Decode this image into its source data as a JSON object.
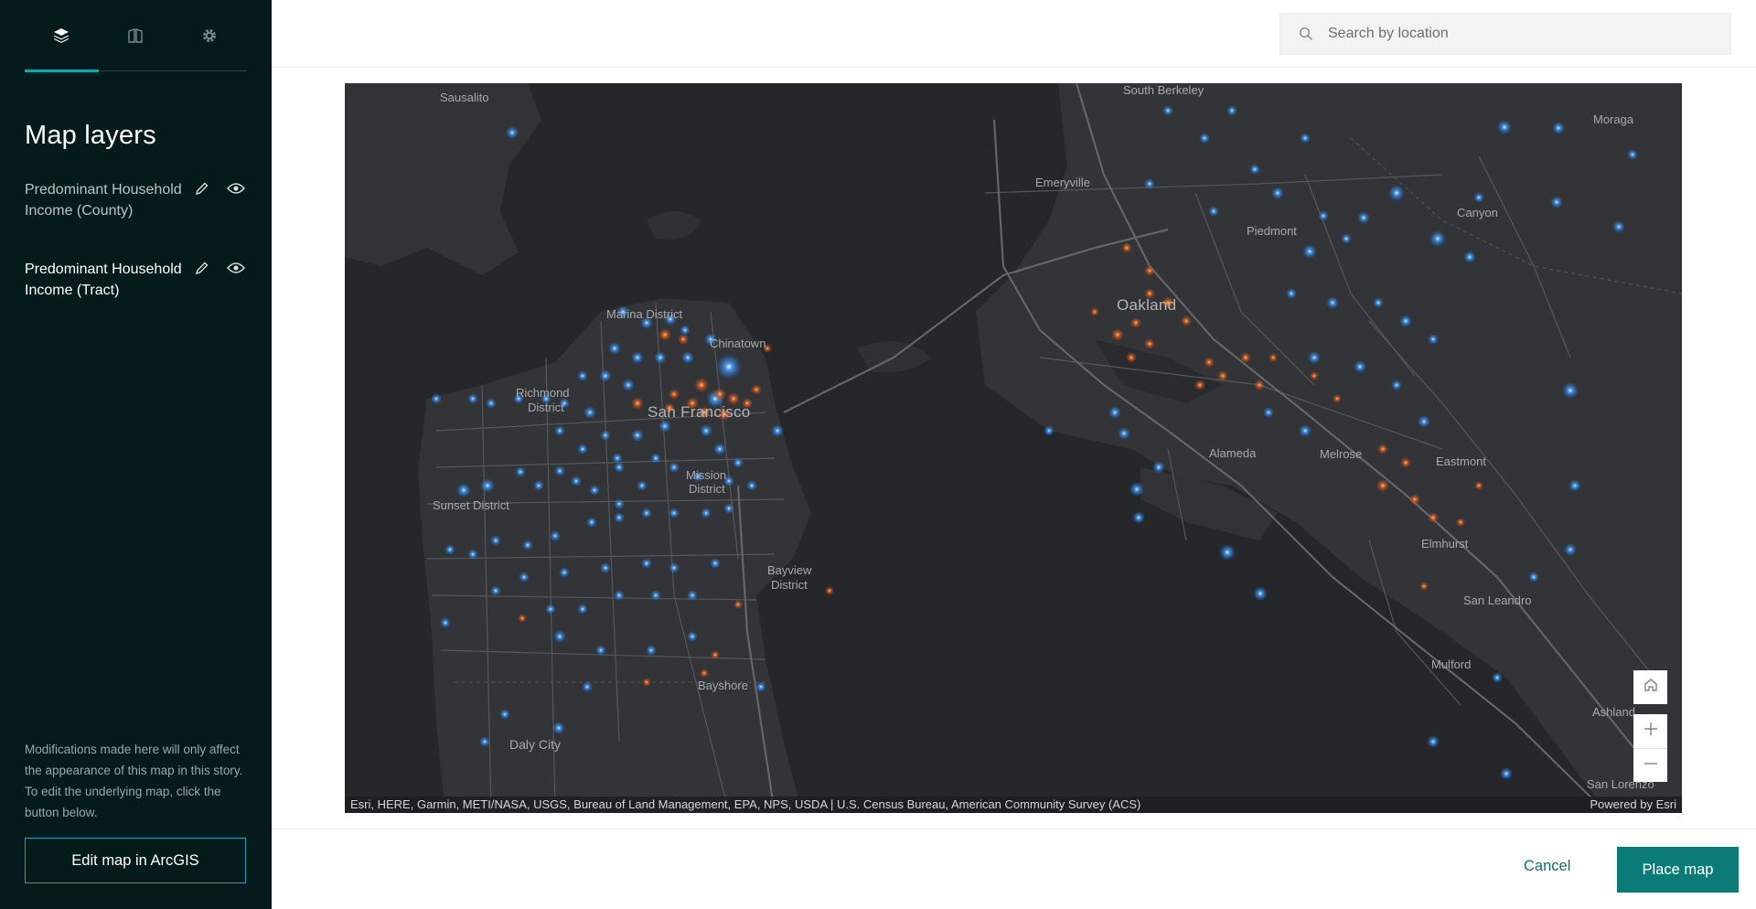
{
  "sidebar": {
    "tabs": [
      {
        "icon": "layers-icon"
      },
      {
        "icon": "legend-icon"
      },
      {
        "icon": "gear-icon"
      }
    ],
    "title": "Map layers",
    "layers": [
      {
        "name": "Predominant Household Income (County)",
        "selected": false
      },
      {
        "name": "Predominant Household Income (Tract)",
        "selected": true
      }
    ],
    "note": "Modifications made here will only affect the appearance of this map in this story. To edit the underlying map, click the button below.",
    "edit_button": "Edit map in ArcGIS"
  },
  "search": {
    "placeholder": "Search by location"
  },
  "map": {
    "labels": {
      "sausalito": "Sausalito",
      "south_berkeley": "South Berkeley",
      "moraga": "Moraga",
      "emeryville": "Emeryville",
      "canyon": "Canyon",
      "piedmont": "Piedmont",
      "oakland": "Oakland",
      "marina": "Marina District",
      "chinatown": "Chinatown",
      "richmond": "Richmond",
      "richmond2": "District",
      "san_francisco": "San Francisco",
      "alameda": "Alameda",
      "melrose": "Melrose",
      "eastmont": "Eastmont",
      "mission": "Mission",
      "mission2": "District",
      "sunset": "Sunset District",
      "elmhurst": "Elmhurst",
      "bayview": "Bayview",
      "bayview2": "District",
      "san_leandro": "San Leandro",
      "mulford": "Mulford",
      "bayshore": "Bayshore",
      "ashland": "Ashland",
      "daly_city": "Daly City",
      "san_lorenzo": "San Lorenzo"
    },
    "attribution": "Esri, HERE, Garmin, METI/NASA, USGS, Bureau of Land Management, EPA, NPS, USDA | U.S. Census Bureau, American Community Survey (ACS)",
    "powered_by": "Powered by Esri",
    "controls": [
      "home-icon",
      "zoom-in-icon",
      "zoom-out-icon"
    ],
    "colors": {
      "high_income": "#2f8fe8",
      "low_income": "#e0621e",
      "water": "#26272b",
      "land": "#333438"
    }
  },
  "footer": {
    "cancel": "Cancel",
    "place_map": "Place map"
  }
}
